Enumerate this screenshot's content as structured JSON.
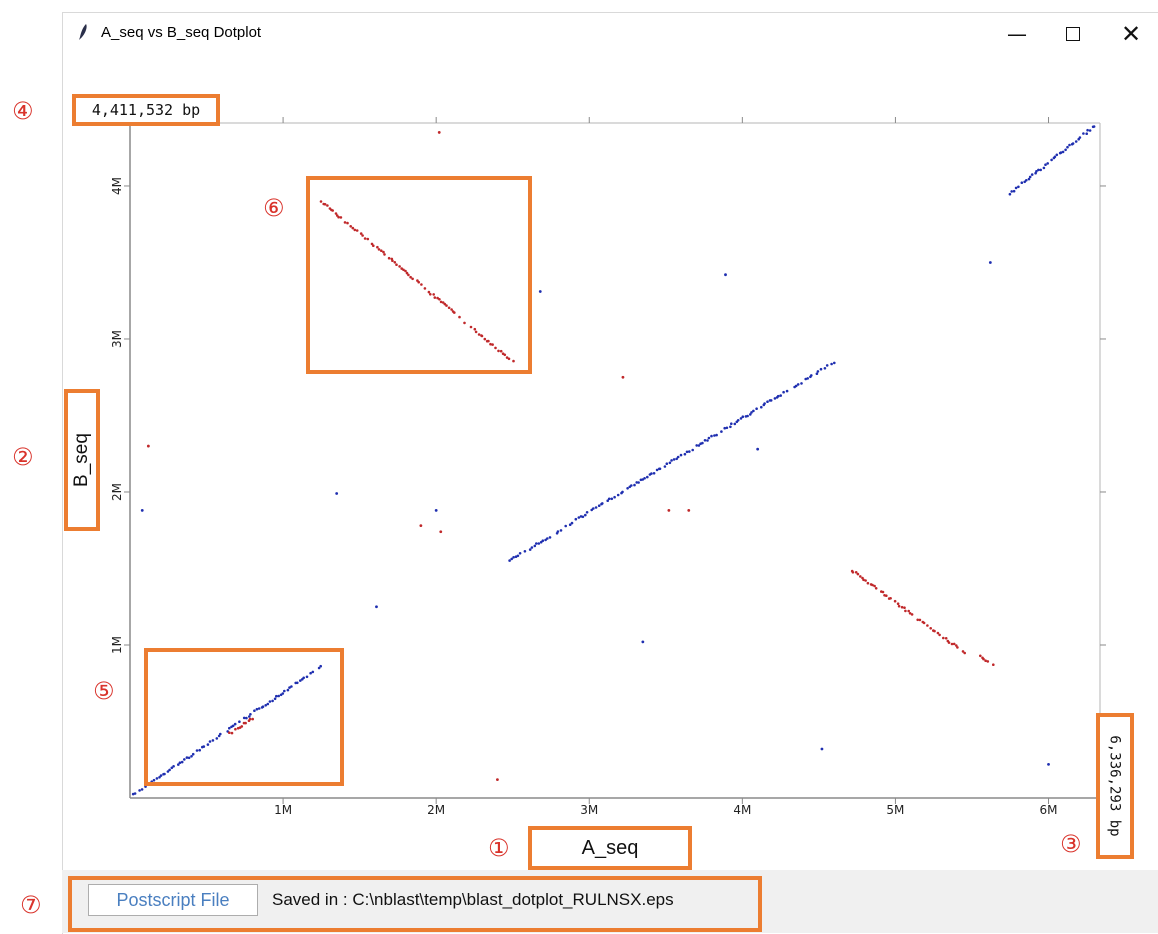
{
  "window": {
    "title": "A_seq vs B_seq Dotplot",
    "minimize_glyph": "—",
    "close_glyph": "✕"
  },
  "plot": {
    "y_total_label": "4,411,532 bp",
    "x_total_label": "6,336,293 bp",
    "x_axis_label": "A_seq",
    "y_axis_label": "B_seq",
    "x_ticks": [
      "1M",
      "2M",
      "3M",
      "4M",
      "5M",
      "6M"
    ],
    "y_ticks": [
      "1M",
      "2M",
      "3M",
      "4M"
    ]
  },
  "chart_data": {
    "type": "scatter",
    "title": "",
    "xlabel": "A_seq",
    "ylabel": "B_seq",
    "xlim": [
      0,
      6336293
    ],
    "ylim": [
      0,
      4411532
    ],
    "x_ticks": [
      1000000,
      2000000,
      3000000,
      4000000,
      5000000,
      6000000
    ],
    "y_ticks": [
      1000000,
      2000000,
      3000000,
      4000000
    ],
    "grid": false,
    "colors": {
      "forward": "#1f2fb0",
      "reverse": "#c0282a"
    },
    "segments": [
      {
        "strand": "forward",
        "x": [
          20000,
          1250000
        ],
        "y": [
          20000,
          860000
        ]
      },
      {
        "strand": "reverse",
        "x": [
          650000,
          800000
        ],
        "y": [
          420000,
          520000
        ]
      },
      {
        "strand": "reverse",
        "x": [
          1250000,
          2500000
        ],
        "y": [
          3900000,
          2850000
        ]
      },
      {
        "strand": "forward",
        "x": [
          2480000,
          4600000
        ],
        "y": [
          1550000,
          2850000
        ]
      },
      {
        "strand": "reverse",
        "x": [
          4700000,
          5450000
        ],
        "y": [
          1500000,
          950000
        ]
      },
      {
        "strand": "reverse",
        "x": [
          5550000,
          5650000
        ],
        "y": [
          930000,
          860000
        ]
      },
      {
        "strand": "forward",
        "x": [
          5750000,
          6300000
        ],
        "y": [
          3950000,
          4390000
        ]
      }
    ],
    "points": [
      {
        "strand": "reverse",
        "x": 2020000,
        "y": 4350000
      },
      {
        "strand": "forward",
        "x": 80000,
        "y": 1880000
      },
      {
        "strand": "reverse",
        "x": 120000,
        "y": 2300000
      },
      {
        "strand": "forward",
        "x": 1350000,
        "y": 1990000
      },
      {
        "strand": "reverse",
        "x": 1900000,
        "y": 1780000
      },
      {
        "strand": "forward",
        "x": 2000000,
        "y": 1880000
      },
      {
        "strand": "reverse",
        "x": 2030000,
        "y": 1740000
      },
      {
        "strand": "forward",
        "x": 1610000,
        "y": 1250000
      },
      {
        "strand": "reverse",
        "x": 2400000,
        "y": 120000
      },
      {
        "strand": "forward",
        "x": 3350000,
        "y": 1020000
      },
      {
        "strand": "reverse",
        "x": 3520000,
        "y": 1880000
      },
      {
        "strand": "reverse",
        "x": 3650000,
        "y": 1880000
      },
      {
        "strand": "reverse",
        "x": 3220000,
        "y": 2750000
      },
      {
        "strand": "forward",
        "x": 4100000,
        "y": 2280000
      },
      {
        "strand": "forward",
        "x": 3890000,
        "y": 3420000
      },
      {
        "strand": "forward",
        "x": 4520000,
        "y": 320000
      },
      {
        "strand": "forward",
        "x": 5620000,
        "y": 3500000
      },
      {
        "strand": "forward",
        "x": 6000000,
        "y": 220000
      },
      {
        "strand": "forward",
        "x": 2680000,
        "y": 3310000
      }
    ]
  },
  "annotations": {
    "n1": "①",
    "n2": "②",
    "n3": "③",
    "n4": "④",
    "n5": "⑤",
    "n6": "⑥",
    "n7": "⑦"
  },
  "footer": {
    "button_label": "Postscript File",
    "saved_text": "Saved in : C:\\nblast\\temp\\blast_dotplot_RULNSX.eps"
  }
}
